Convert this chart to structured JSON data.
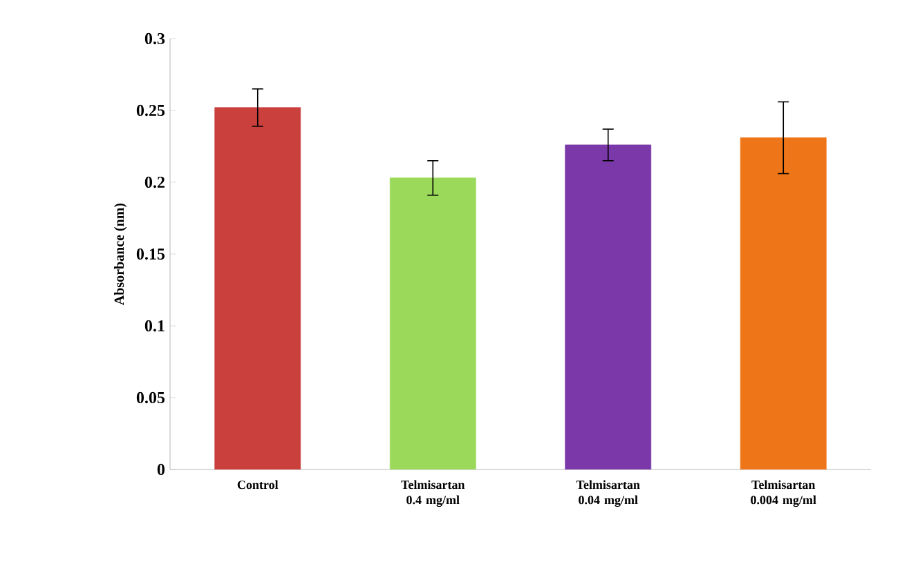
{
  "chart_data": {
    "type": "bar",
    "ylabel": "Absorbance (nm)",
    "categories": [
      "Control",
      "Telmisartan 0.4 mg/ml",
      "Telmisartan 0.04 mg/ml",
      "Telmisartan 0.004 mg/ml"
    ],
    "values": [
      0.252,
      0.203,
      0.226,
      0.231
    ],
    "errors": [
      0.013,
      0.012,
      0.011,
      0.025
    ],
    "colors": [
      "#c9403d",
      "#9bd95a",
      "#7a38a8",
      "#ee7518"
    ],
    "ylim": [
      0,
      0.3
    ],
    "yticks": [
      0,
      0.05,
      0.1,
      0.15,
      0.2,
      0.25,
      0.3
    ]
  }
}
